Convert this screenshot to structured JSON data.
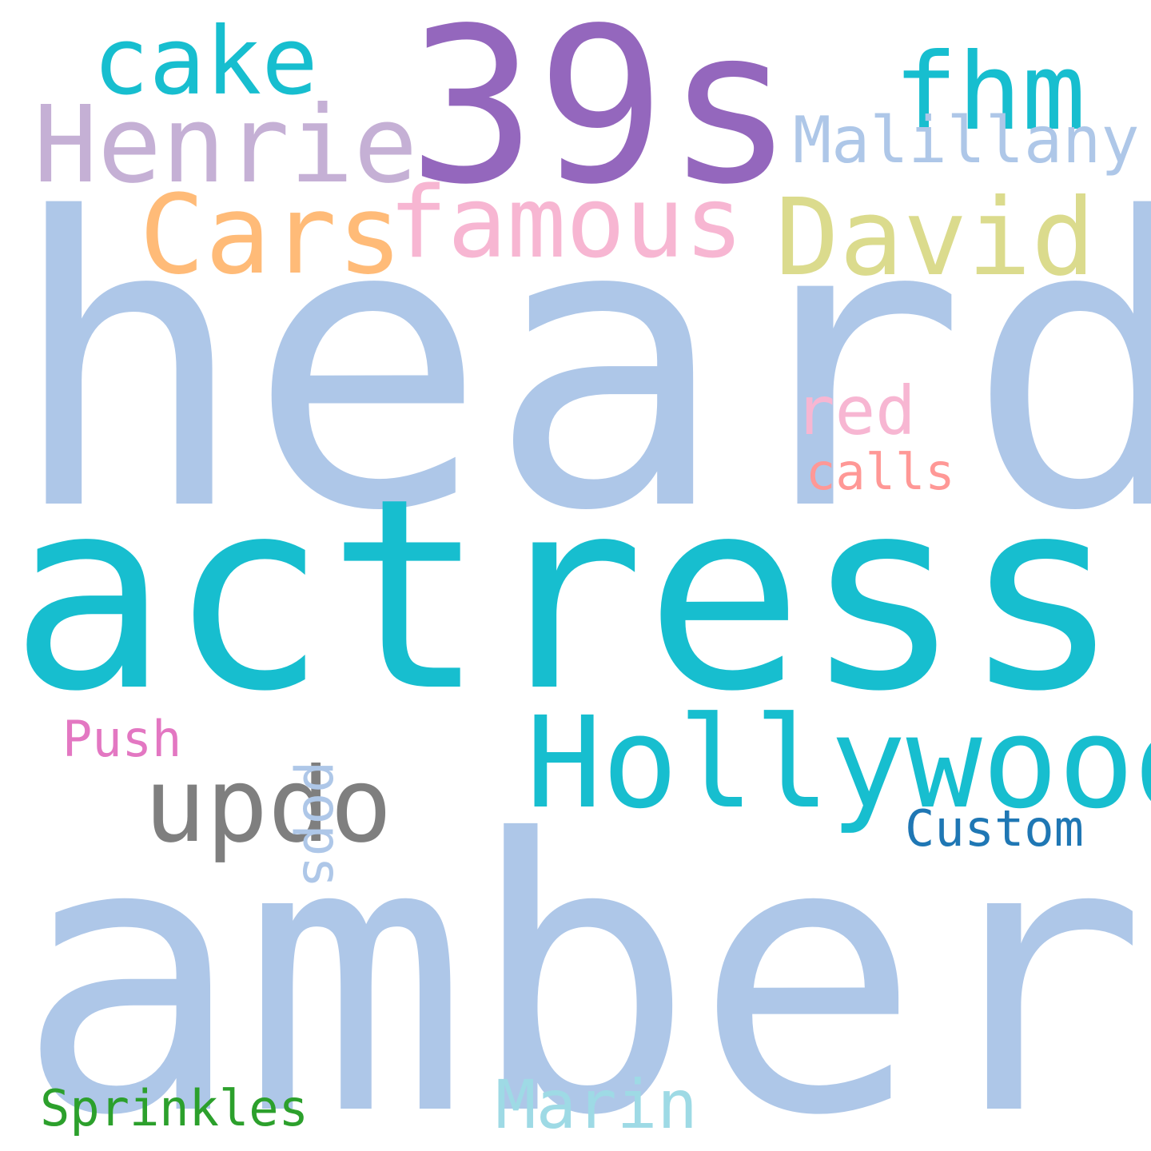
{
  "words": [
    {
      "id": "heard",
      "text": "heard",
      "color": "#aec7e8",
      "orientation": "horizontal"
    },
    {
      "id": "actress",
      "text": "actress",
      "color": "#17becf",
      "orientation": "horizontal"
    },
    {
      "id": "amber",
      "text": "amber",
      "color": "#aec7e8",
      "orientation": "horizontal"
    },
    {
      "id": "39s",
      "text": "39s",
      "color": "#9467bd",
      "orientation": "horizontal"
    },
    {
      "id": "hollywood",
      "text": "Hollywood",
      "color": "#17becf",
      "orientation": "horizontal"
    },
    {
      "id": "henrie",
      "text": "Henrie",
      "color": "#c5b0d5",
      "orientation": "horizontal"
    },
    {
      "id": "famous",
      "text": "famous",
      "color": "#f7b6d2",
      "orientation": "horizontal"
    },
    {
      "id": "cars",
      "text": "Cars",
      "color": "#ffbb78",
      "orientation": "horizontal"
    },
    {
      "id": "david",
      "text": "David",
      "color": "#dbdb8d",
      "orientation": "horizontal"
    },
    {
      "id": "cake",
      "text": "cake",
      "color": "#17becf",
      "orientation": "horizontal"
    },
    {
      "id": "fhm",
      "text": "fhm",
      "color": "#17becf",
      "orientation": "horizontal"
    },
    {
      "id": "updo",
      "text": "updo",
      "color": "#7f7f7f",
      "orientation": "horizontal"
    },
    {
      "id": "malillany",
      "text": "Malillany",
      "color": "#aec7e8",
      "orientation": "horizontal"
    },
    {
      "id": "marin",
      "text": "Marin",
      "color": "#9edae5",
      "orientation": "horizontal"
    },
    {
      "id": "red",
      "text": "red",
      "color": "#f7b6d2",
      "orientation": "horizontal"
    },
    {
      "id": "custom",
      "text": "Custom",
      "color": "#1f77b4",
      "orientation": "horizontal"
    },
    {
      "id": "sprinkles",
      "text": "Sprinkles",
      "color": "#2ca02c",
      "orientation": "horizontal"
    },
    {
      "id": "calls",
      "text": "calls",
      "color": "#ff9896",
      "orientation": "horizontal"
    },
    {
      "id": "push",
      "text": "Push",
      "color": "#e377c2",
      "orientation": "horizontal"
    },
    {
      "id": "pops",
      "text": "pops",
      "color": "#aec7e8",
      "orientation": "vertical"
    }
  ]
}
